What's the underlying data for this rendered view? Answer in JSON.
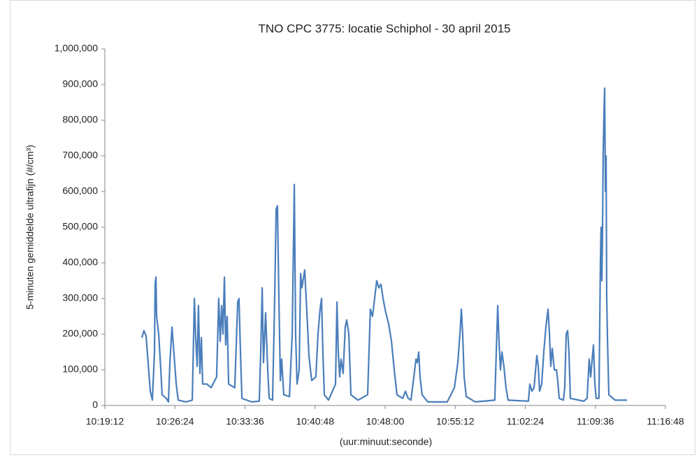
{
  "chart_data": {
    "type": "line",
    "title": "TNO CPC 3775: locatie Schiphol - 30 april 2015",
    "x_label": "(uur:minuut:seconde)",
    "y_label": "5-minuten gemiddelde ultrafijn (#/cm³)",
    "xlim": [
      "10:19:12",
      "11:16:48"
    ],
    "xticks": [
      "10:19:12",
      "10:26:24",
      "10:33:36",
      "10:40:48",
      "10:48:00",
      "10:55:12",
      "11:02:24",
      "11:09:36",
      "11:16:48"
    ],
    "ylim": [
      0,
      1000000
    ],
    "yticks": [
      0,
      {
        "value": 100000,
        "label": "100,000"
      },
      {
        "value": 200000,
        "label": "200,000"
      },
      {
        "value": 300000,
        "label": "300,000"
      },
      {
        "value": 400000,
        "label": "400,000"
      },
      {
        "value": 500000,
        "label": "500,000"
      },
      {
        "value": 600000,
        "label": "600,000"
      },
      {
        "value": 700000,
        "label": "700,000"
      },
      {
        "value": 800000,
        "label": "800,000"
      },
      {
        "value": 900000,
        "label": "900,000"
      },
      {
        "value": 1000000,
        "label": "1,000,000"
      }
    ],
    "grid": false,
    "series": [
      {
        "color": "#4a7ebb",
        "x": [
          "10:23:00",
          "10:23:13",
          "10:23:26",
          "10:23:39",
          "10:23:52",
          "10:24:05",
          "10:24:18",
          "10:24:22",
          "10:24:27",
          "10:24:31",
          "10:24:44",
          "10:24:57",
          "10:25:05",
          "10:25:31",
          "10:25:44",
          "10:25:53",
          "10:26:06",
          "10:26:19",
          "10:26:32",
          "10:26:44",
          "10:27:32",
          "10:28:11",
          "10:28:24",
          "10:28:32",
          "10:28:41",
          "10:28:49",
          "10:28:58",
          "10:29:07",
          "10:29:15",
          "10:29:41",
          "10:30:07",
          "10:30:41",
          "10:30:54",
          "10:31:03",
          "10:31:12",
          "10:31:20",
          "10:31:29",
          "10:31:37",
          "10:31:46",
          "10:31:55",
          "10:32:33",
          "10:32:51",
          "10:32:59",
          "10:33:08",
          "10:33:17",
          "10:34:17",
          "10:35:04",
          "10:35:13",
          "10:35:22",
          "10:35:30",
          "10:35:43",
          "10:35:56",
          "10:36:05",
          "10:36:26",
          "10:36:39",
          "10:36:48",
          "10:36:56",
          "10:37:05",
          "10:37:14",
          "10:37:22",
          "10:37:35",
          "10:38:10",
          "10:38:27",
          "10:38:40",
          "10:38:48",
          "10:38:57",
          "10:39:10",
          "10:39:19",
          "10:39:27",
          "10:39:44",
          "10:39:53",
          "10:40:02",
          "10:40:10",
          "10:40:27",
          "10:40:53",
          "10:41:06",
          "10:41:19",
          "10:41:28",
          "10:41:36",
          "10:41:45",
          "10:42:11",
          "10:42:54",
          "10:43:03",
          "10:43:11",
          "10:43:20",
          "10:43:28",
          "10:43:41",
          "10:43:54",
          "10:44:03",
          "10:44:16",
          "10:44:29",
          "10:45:12",
          "10:46:12",
          "10:46:29",
          "10:46:42",
          "10:46:55",
          "10:47:08",
          "10:47:21",
          "10:47:34",
          "10:47:47",
          "10:48:04",
          "10:48:21",
          "10:48:39",
          "10:48:56",
          "10:49:13",
          "10:49:48",
          "10:50:05",
          "10:50:22",
          "10:50:39",
          "10:50:57",
          "10:51:10",
          "10:51:18",
          "10:51:27",
          "10:51:35",
          "10:51:48",
          "10:52:23",
          "10:54:23",
          "10:55:07",
          "10:55:28",
          "10:55:41",
          "10:55:50",
          "10:55:58",
          "10:56:07",
          "10:56:20",
          "10:57:16",
          "10:59:16",
          "10:59:34",
          "10:59:42",
          "10:59:51",
          "11:00:00",
          "11:00:12",
          "11:00:25",
          "11:00:38",
          "11:02:43",
          "11:02:52",
          "11:03:05",
          "11:03:18",
          "11:03:35",
          "11:03:44",
          "11:03:52",
          "11:04:05",
          "11:04:18",
          "11:04:31",
          "11:04:44",
          "11:04:53",
          "11:05:01",
          "11:05:10",
          "11:05:23",
          "11:05:36",
          "11:05:44",
          "11:05:53",
          "11:06:19",
          "11:06:27",
          "11:06:36",
          "11:06:45",
          "11:06:53",
          "11:07:02",
          "11:08:24",
          "11:08:45",
          "11:08:58",
          "11:09:07",
          "11:09:24",
          "11:09:33",
          "11:09:41",
          "11:09:58",
          "11:10:07",
          "11:10:11",
          "11:10:16",
          "11:10:20",
          "11:10:24",
          "11:10:29",
          "11:10:33",
          "11:10:38",
          "11:10:42",
          "11:10:46",
          "11:10:51",
          "11:10:59",
          "11:11:38",
          "11:12:51"
        ],
        "values": [
          190000,
          210000,
          195000,
          120000,
          40000,
          15000,
          150000,
          340000,
          360000,
          250000,
          200000,
          100000,
          30000,
          20000,
          10000,
          120000,
          220000,
          140000,
          60000,
          15000,
          10000,
          15000,
          300000,
          190000,
          110000,
          280000,
          90000,
          190000,
          60000,
          60000,
          50000,
          80000,
          300000,
          180000,
          280000,
          200000,
          360000,
          170000,
          250000,
          60000,
          50000,
          290000,
          300000,
          150000,
          20000,
          10000,
          12000,
          150000,
          330000,
          120000,
          260000,
          100000,
          20000,
          15000,
          300000,
          550000,
          560000,
          300000,
          70000,
          130000,
          30000,
          25000,
          200000,
          620000,
          200000,
          60000,
          100000,
          370000,
          330000,
          380000,
          300000,
          220000,
          140000,
          70000,
          80000,
          200000,
          270000,
          300000,
          150000,
          30000,
          15000,
          60000,
          290000,
          150000,
          80000,
          130000,
          90000,
          220000,
          240000,
          200000,
          30000,
          15000,
          30000,
          270000,
          250000,
          300000,
          350000,
          330000,
          340000,
          300000,
          260000,
          230000,
          180000,
          100000,
          30000,
          20000,
          40000,
          20000,
          15000,
          80000,
          130000,
          120000,
          150000,
          80000,
          30000,
          10000,
          10000,
          50000,
          120000,
          200000,
          270000,
          200000,
          80000,
          25000,
          10000,
          15000,
          280000,
          180000,
          100000,
          150000,
          110000,
          50000,
          15000,
          12000,
          60000,
          40000,
          50000,
          140000,
          110000,
          40000,
          60000,
          150000,
          220000,
          270000,
          200000,
          110000,
          160000,
          100000,
          100000,
          70000,
          20000,
          15000,
          50000,
          200000,
          210000,
          150000,
          20000,
          12000,
          20000,
          130000,
          80000,
          170000,
          60000,
          20000,
          20000,
          400000,
          500000,
          350000,
          480000,
          700000,
          820000,
          890000,
          600000,
          700000,
          300000,
          180000,
          30000,
          15000,
          15000
        ]
      }
    ]
  }
}
